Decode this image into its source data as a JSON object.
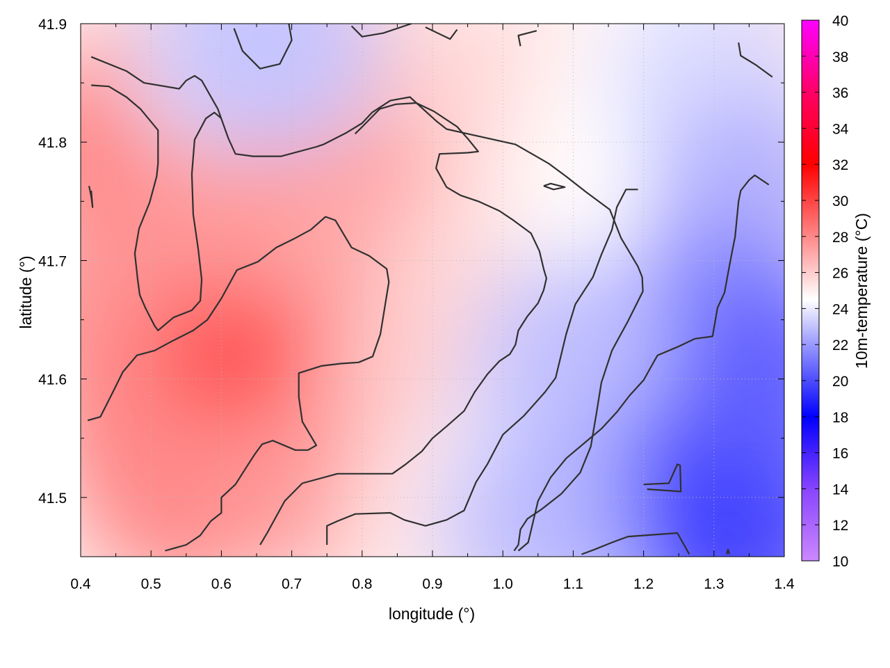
{
  "chart_data": {
    "type": "heatmap",
    "title": "",
    "xlabel": "longitude (°)",
    "ylabel": "latitude (°)",
    "colorbar_label": "10m-temperature (°C)",
    "xlim": [
      0.4,
      1.4
    ],
    "ylim": [
      41.45,
      41.9
    ],
    "x_ticks": [
      0.4,
      0.5,
      0.6,
      0.7,
      0.8,
      0.9,
      1.0,
      1.1,
      1.2,
      1.3,
      1.4
    ],
    "x_tick_labels": [
      "0.4",
      "0.5",
      "0.6",
      "0.7",
      "0.8",
      "0.9",
      "1.0",
      "1.1",
      "1.2",
      "1.3",
      "1.4"
    ],
    "y_ticks": [
      41.5,
      41.6,
      41.7,
      41.8,
      41.9
    ],
    "y_tick_labels": [
      "41.5",
      "41.6",
      "41.7",
      "41.8",
      "41.9"
    ],
    "colorbar_range": [
      10,
      40
    ],
    "colorbar_ticks": [
      10,
      12,
      14,
      16,
      18,
      20,
      22,
      24,
      26,
      28,
      30,
      32,
      34,
      36,
      38,
      40
    ],
    "colorbar_tick_labels": [
      "10",
      "12",
      "14",
      "16",
      "18",
      "20",
      "22",
      "24",
      "26",
      "28",
      "30",
      "32",
      "34",
      "36",
      "38",
      "40"
    ],
    "colormap": [
      {
        "value": 10,
        "color": "#cc88ff"
      },
      {
        "value": 14,
        "color": "#8844ff"
      },
      {
        "value": 18,
        "color": "#0000ff"
      },
      {
        "value": 22,
        "color": "#9999ff"
      },
      {
        "value": 24.5,
        "color": "#ffffff"
      },
      {
        "value": 27,
        "color": "#ffaaaa"
      },
      {
        "value": 32,
        "color": "#ff0000"
      },
      {
        "value": 36,
        "color": "#ff0066"
      },
      {
        "value": 40,
        "color": "#ff00ff"
      }
    ],
    "temperature_field": [
      {
        "x": 0.45,
        "y": 41.8,
        "value": 28.5
      },
      {
        "x": 0.45,
        "y": 41.65,
        "value": 28
      },
      {
        "x": 0.5,
        "y": 41.55,
        "value": 28.2
      },
      {
        "x": 0.55,
        "y": 41.5,
        "value": 28
      },
      {
        "x": 0.65,
        "y": 41.65,
        "value": 29.5
      },
      {
        "x": 0.7,
        "y": 41.62,
        "value": 30
      },
      {
        "x": 0.6,
        "y": 41.75,
        "value": 27.5
      },
      {
        "x": 0.8,
        "y": 41.82,
        "value": 28
      },
      {
        "x": 0.82,
        "y": 41.7,
        "value": 27
      },
      {
        "x": 0.75,
        "y": 41.52,
        "value": 27.5
      },
      {
        "x": 0.9,
        "y": 41.6,
        "value": 26
      },
      {
        "x": 1.0,
        "y": 41.7,
        "value": 25.5
      },
      {
        "x": 1.0,
        "y": 41.85,
        "value": 25.5
      },
      {
        "x": 0.72,
        "y": 41.88,
        "value": 26
      },
      {
        "x": 0.58,
        "y": 41.88,
        "value": 26
      },
      {
        "x": 0.92,
        "y": 41.47,
        "value": 25
      },
      {
        "x": 1.05,
        "y": 41.55,
        "value": 24
      },
      {
        "x": 1.15,
        "y": 41.75,
        "value": 24.5
      },
      {
        "x": 1.2,
        "y": 41.85,
        "value": 24.5
      },
      {
        "x": 1.3,
        "y": 41.85,
        "value": 23.5
      },
      {
        "x": 1.35,
        "y": 41.75,
        "value": 22.5
      },
      {
        "x": 1.3,
        "y": 41.65,
        "value": 21.5
      },
      {
        "x": 1.2,
        "y": 41.6,
        "value": 21.5
      },
      {
        "x": 1.15,
        "y": 41.5,
        "value": 20.5
      },
      {
        "x": 1.22,
        "y": 41.5,
        "value": 19.5
      },
      {
        "x": 1.3,
        "y": 41.55,
        "value": 20
      },
      {
        "x": 1.35,
        "y": 41.47,
        "value": 19.5
      },
      {
        "x": 1.38,
        "y": 41.6,
        "value": 20.5
      },
      {
        "x": 1.1,
        "y": 41.62,
        "value": 23
      },
      {
        "x": 1.05,
        "y": 41.47,
        "value": 23
      },
      {
        "x": 0.62,
        "y": 41.88,
        "value": 23.5
      },
      {
        "x": 0.68,
        "y": 41.88,
        "value": 23
      }
    ],
    "contours": [
      [
        [
          0.415,
          41.872
        ],
        [
          0.465,
          41.86
        ],
        [
          0.49,
          41.85
        ],
        [
          0.54,
          41.845
        ],
        [
          0.55,
          41.852
        ],
        [
          0.562,
          41.856
        ],
        [
          0.572,
          41.852
        ],
        [
          0.595,
          41.828
        ],
        [
          0.61,
          41.803
        ],
        [
          0.62,
          41.79
        ],
        [
          0.645,
          41.788
        ],
        [
          0.685,
          41.788
        ],
        [
          0.735,
          41.796
        ],
        [
          0.745,
          41.798
        ],
        [
          0.778,
          41.808
        ],
        [
          0.8,
          41.816
        ],
        [
          0.814,
          41.825
        ],
        [
          0.84,
          41.835
        ],
        [
          0.868,
          41.838
        ],
        [
          0.905,
          41.818
        ],
        [
          0.92,
          41.811
        ],
        [
          0.95,
          41.807
        ],
        [
          1.018,
          41.798
        ],
        [
          1.065,
          41.782
        ],
        [
          1.09,
          41.771
        ],
        [
          1.118,
          41.758
        ],
        [
          1.152,
          41.743
        ],
        [
          1.168,
          41.719
        ],
        [
          1.192,
          41.695
        ],
        [
          1.198,
          41.686
        ],
        [
          1.199,
          41.674
        ],
        [
          1.178,
          41.649
        ],
        [
          1.166,
          41.636
        ],
        [
          1.155,
          41.624
        ],
        [
          1.14,
          41.597
        ],
        [
          1.133,
          41.571
        ],
        [
          1.125,
          41.543
        ],
        [
          1.11,
          41.521
        ],
        [
          1.083,
          41.503
        ],
        [
          1.055,
          41.49
        ],
        [
          1.035,
          41.482
        ],
        [
          1.025,
          41.473
        ],
        [
          1.022,
          41.46
        ],
        [
          1.016,
          41.455
        ]
      ],
      [
        [
          0.655,
          41.46
        ],
        [
          0.665,
          41.47
        ],
        [
          0.69,
          41.497
        ],
        [
          0.715,
          41.512
        ],
        [
          0.765,
          41.52
        ],
        [
          0.843,
          41.52
        ],
        [
          0.862,
          41.528
        ],
        [
          0.885,
          41.539
        ],
        [
          0.9,
          41.55
        ],
        [
          0.92,
          41.56
        ],
        [
          0.945,
          41.573
        ],
        [
          0.96,
          41.589
        ],
        [
          0.978,
          41.604
        ],
        [
          0.995,
          41.615
        ],
        [
          1.01,
          41.621
        ],
        [
          1.018,
          41.629
        ],
        [
          1.022,
          41.641
        ],
        [
          1.035,
          41.653
        ],
        [
          1.05,
          41.664
        ],
        [
          1.058,
          41.675
        ],
        [
          1.062,
          41.685
        ],
        [
          1.058,
          41.693
        ],
        [
          1.052,
          41.708
        ],
        [
          1.04,
          41.723
        ],
        [
          1.015,
          41.734
        ],
        [
          0.995,
          41.742
        ],
        [
          0.965,
          41.75
        ],
        [
          0.94,
          41.755
        ],
        [
          0.92,
          41.762
        ],
        [
          0.905,
          41.778
        ],
        [
          0.91,
          41.79
        ],
        [
          0.95,
          41.791
        ],
        [
          0.965,
          41.792
        ],
        [
          0.95,
          41.803
        ],
        [
          0.935,
          41.813
        ],
        [
          0.902,
          41.826
        ],
        [
          0.877,
          41.833
        ],
        [
          0.848,
          41.832
        ],
        [
          0.825,
          41.828
        ],
        [
          0.802,
          41.814
        ],
        [
          0.79,
          41.807
        ]
      ],
      [
        [
          0.41,
          41.565
        ],
        [
          0.428,
          41.568
        ],
        [
          0.445,
          41.588
        ],
        [
          0.46,
          41.606
        ],
        [
          0.48,
          41.62
        ],
        [
          0.505,
          41.624
        ],
        [
          0.53,
          41.632
        ],
        [
          0.56,
          41.641
        ],
        [
          0.58,
          41.65
        ],
        [
          0.6,
          41.668
        ],
        [
          0.622,
          41.692
        ],
        [
          0.652,
          41.699
        ],
        [
          0.678,
          41.711
        ],
        [
          0.702,
          41.718
        ],
        [
          0.727,
          41.726
        ],
        [
          0.748,
          41.737
        ],
        [
          0.762,
          41.734
        ],
        [
          0.785,
          41.711
        ],
        [
          0.81,
          41.704
        ],
        [
          0.835,
          41.693
        ],
        [
          0.838,
          41.682
        ],
        [
          0.832,
          41.66
        ],
        [
          0.826,
          41.638
        ],
        [
          0.815,
          41.619
        ],
        [
          0.795,
          41.614
        ],
        [
          0.77,
          41.613
        ],
        [
          0.742,
          41.611
        ],
        [
          0.71,
          41.605
        ],
        [
          0.71,
          41.585
        ],
        [
          0.715,
          41.564
        ],
        [
          0.735,
          41.544
        ],
        [
          0.723,
          41.54
        ],
        [
          0.705,
          41.54
        ],
        [
          0.673,
          41.548
        ],
        [
          0.658,
          41.545
        ],
        [
          0.648,
          41.537
        ],
        [
          0.635,
          41.525
        ],
        [
          0.62,
          41.511
        ],
        [
          0.6,
          41.5
        ],
        [
          0.6,
          41.487
        ],
        [
          0.585,
          41.48
        ],
        [
          0.57,
          41.468
        ],
        [
          0.55,
          41.46
        ],
        [
          0.52,
          41.455
        ]
      ],
      [
        [
          0.415,
          41.848
        ],
        [
          0.44,
          41.847
        ],
        [
          0.465,
          41.838
        ],
        [
          0.485,
          41.828
        ],
        [
          0.51,
          41.81
        ],
        [
          0.51,
          41.782
        ],
        [
          0.508,
          41.771
        ],
        [
          0.498,
          41.749
        ],
        [
          0.483,
          41.727
        ],
        [
          0.477,
          41.706
        ],
        [
          0.481,
          41.684
        ],
        [
          0.484,
          41.671
        ],
        [
          0.492,
          41.66
        ],
        [
          0.505,
          41.645
        ],
        [
          0.51,
          41.641
        ],
        [
          0.532,
          41.652
        ],
        [
          0.558,
          41.658
        ],
        [
          0.57,
          41.666
        ],
        [
          0.572,
          41.684
        ],
        [
          0.567,
          41.71
        ],
        [
          0.56,
          41.739
        ],
        [
          0.558,
          41.773
        ],
        [
          0.562,
          41.802
        ],
        [
          0.578,
          41.82
        ],
        [
          0.59,
          41.825
        ],
        [
          0.6,
          41.82
        ]
      ],
      [
        [
          0.618,
          41.896
        ],
        [
          0.63,
          41.877
        ],
        [
          0.655,
          41.862
        ],
        [
          0.683,
          41.866
        ],
        [
          0.7,
          41.886
        ],
        [
          0.695,
          41.903
        ]
      ],
      [
        [
          0.785,
          41.898
        ],
        [
          0.8,
          41.889
        ],
        [
          0.83,
          41.892
        ],
        [
          0.87,
          41.9
        ]
      ],
      [
        [
          0.89,
          41.897
        ],
        [
          0.925,
          41.887
        ],
        [
          0.935,
          41.895
        ]
      ],
      [
        [
          1.025,
          41.881
        ],
        [
          1.022,
          41.89
        ],
        [
          1.048,
          41.894
        ]
      ],
      [
        [
          0.415,
          41.759
        ],
        [
          0.417,
          41.745
        ],
        [
          0.415,
          41.754
        ],
        [
          0.412,
          41.763
        ]
      ],
      [
        [
          1.058,
          41.763
        ],
        [
          1.068,
          41.765
        ],
        [
          1.088,
          41.762
        ],
        [
          1.072,
          41.76
        ],
        [
          1.058,
          41.763
        ]
      ],
      [
        [
          0.75,
          41.46
        ],
        [
          0.75,
          41.476
        ],
        [
          0.765,
          41.48
        ],
        [
          0.79,
          41.486
        ],
        [
          0.84,
          41.487
        ],
        [
          0.86,
          41.481
        ],
        [
          0.89,
          41.476
        ],
        [
          0.92,
          41.481
        ],
        [
          0.945,
          41.489
        ],
        [
          0.962,
          41.513
        ],
        [
          0.978,
          41.528
        ],
        [
          1.0,
          41.553
        ],
        [
          1.03,
          41.569
        ],
        [
          1.06,
          41.589
        ],
        [
          1.075,
          41.601
        ],
        [
          1.09,
          41.638
        ],
        [
          1.103,
          41.663
        ],
        [
          1.128,
          41.686
        ],
        [
          1.14,
          41.705
        ],
        [
          1.155,
          41.726
        ],
        [
          1.162,
          41.745
        ],
        [
          1.175,
          41.76
        ],
        [
          1.192,
          41.76
        ]
      ],
      [
        [
          1.022,
          41.455
        ],
        [
          1.036,
          41.462
        ],
        [
          1.05,
          41.497
        ],
        [
          1.068,
          41.517
        ],
        [
          1.09,
          41.533
        ],
        [
          1.118,
          41.547
        ],
        [
          1.14,
          41.558
        ],
        [
          1.162,
          41.572
        ],
        [
          1.18,
          41.586
        ],
        [
          1.2,
          41.599
        ],
        [
          1.215,
          41.615
        ],
        [
          1.22,
          41.62
        ],
        [
          1.248,
          41.627
        ],
        [
          1.273,
          41.634
        ],
        [
          1.298,
          41.636
        ],
        [
          1.305,
          41.66
        ],
        [
          1.315,
          41.673
        ],
        [
          1.32,
          41.689
        ],
        [
          1.325,
          41.705
        ],
        [
          1.33,
          41.72
        ],
        [
          1.335,
          41.75
        ],
        [
          1.338,
          41.759
        ],
        [
          1.35,
          41.768
        ],
        [
          1.358,
          41.772
        ],
        [
          1.378,
          41.764
        ]
      ],
      [
        [
          1.335,
          41.884
        ],
        [
          1.338,
          41.873
        ],
        [
          1.36,
          41.865
        ],
        [
          1.383,
          41.855
        ]
      ],
      [
        [
          1.2,
          41.511
        ],
        [
          1.236,
          41.512
        ],
        [
          1.248,
          41.528
        ],
        [
          1.252,
          41.527
        ],
        [
          1.253,
          41.505
        ],
        [
          1.205,
          41.507
        ]
      ],
      [
        [
          1.112,
          41.452
        ],
        [
          1.13,
          41.456
        ],
        [
          1.155,
          41.462
        ],
        [
          1.178,
          41.467
        ],
        [
          1.248,
          41.47
        ],
        [
          1.265,
          41.452
        ]
      ],
      [
        [
          1.318,
          41.452
        ],
        [
          1.32,
          41.456
        ],
        [
          1.322,
          41.452
        ]
      ]
    ]
  }
}
